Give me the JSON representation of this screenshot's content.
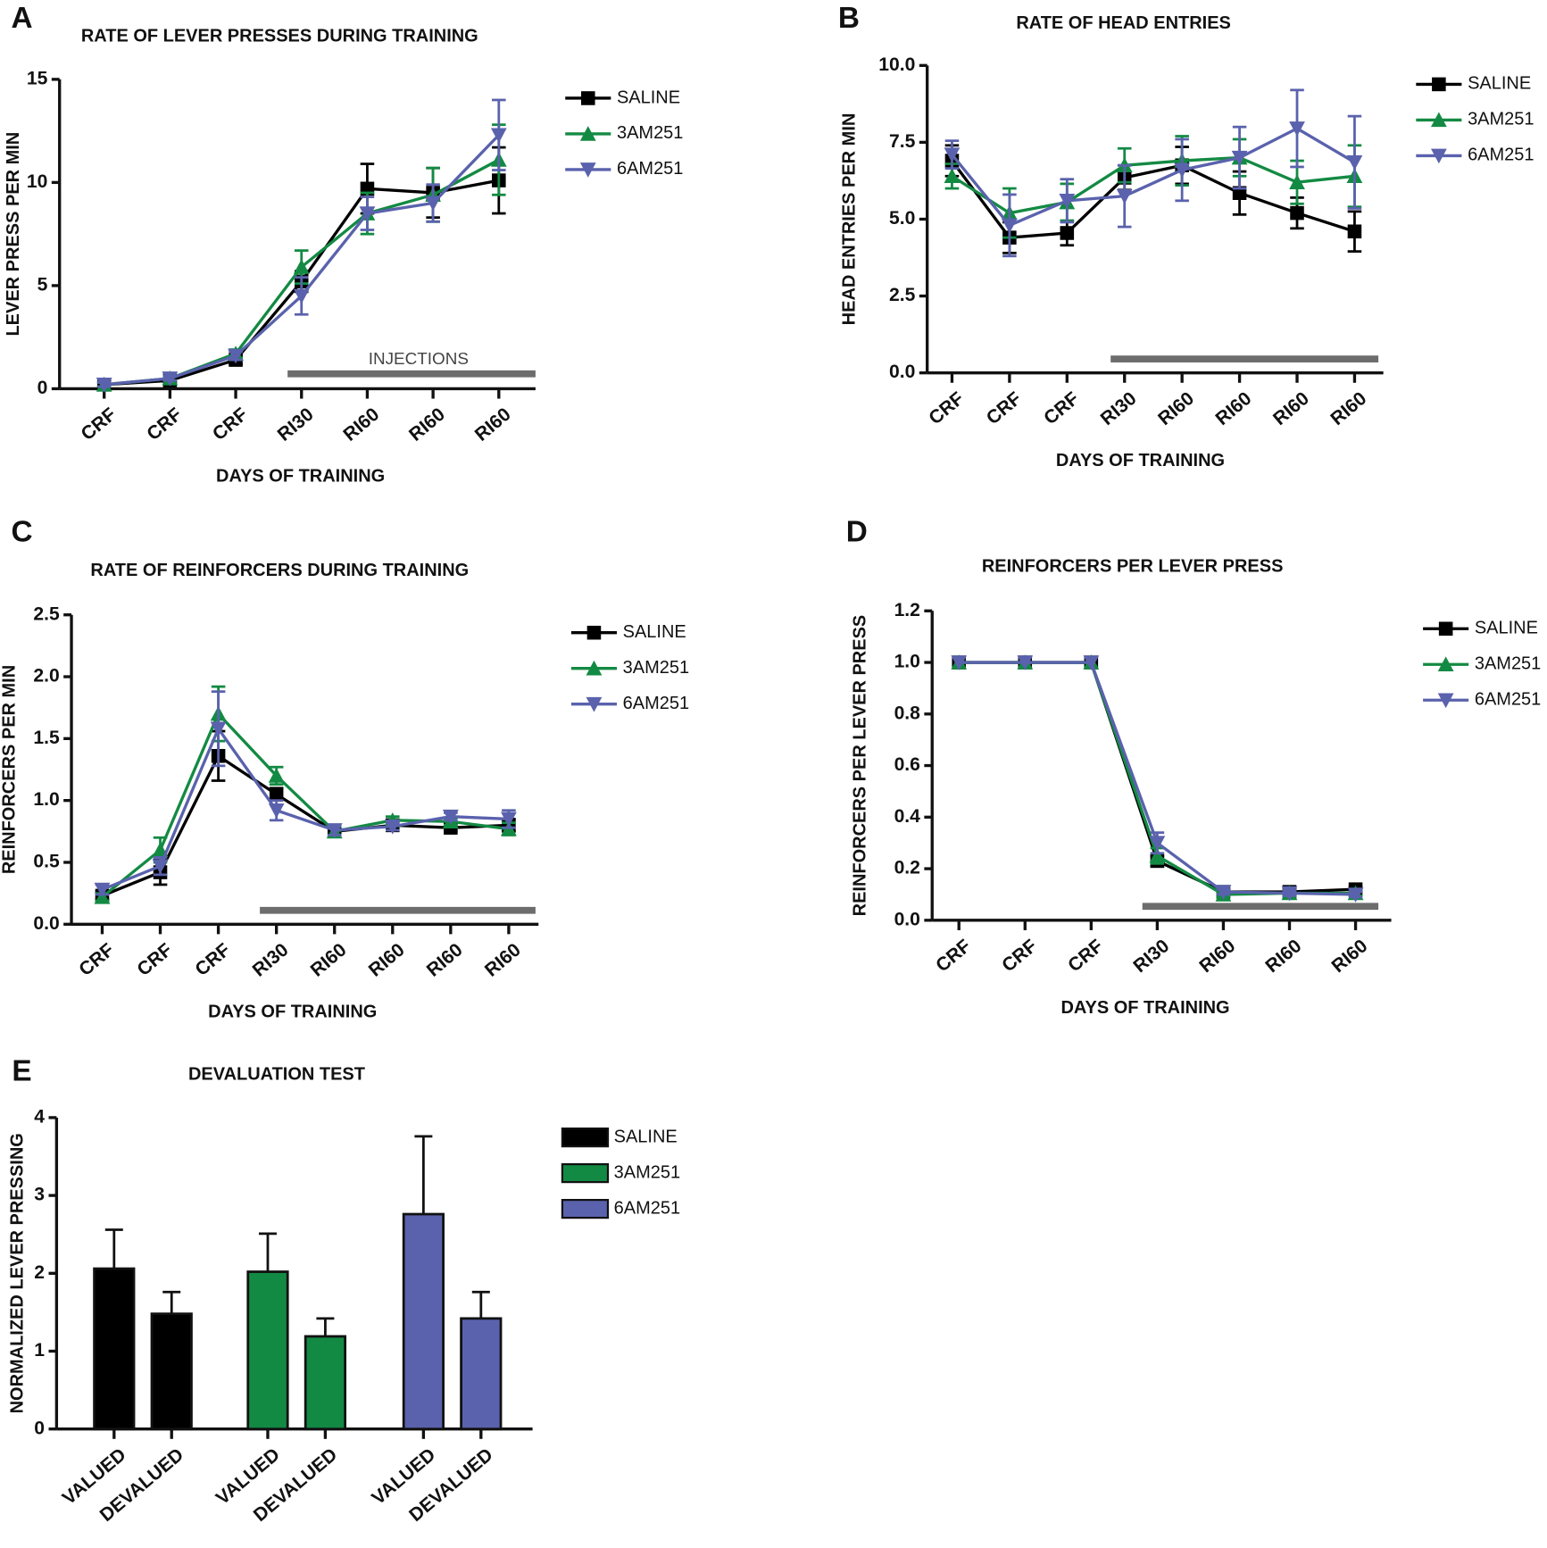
{
  "chart_data": [
    {
      "type": "line",
      "label": "A",
      "title": "RATE OF LEVER PRESSES DURING TRAINING",
      "x_label": "DAYS OF TRAINING",
      "y_label": "LEVER PRESS PER MIN",
      "annotation": "INJECTIONS",
      "categories": [
        "CRF",
        "CRF",
        "CRF",
        "RI30",
        "RI60",
        "RI60",
        "RI60"
      ],
      "ylim": [
        0,
        15
      ],
      "yticks": [
        0,
        5,
        10,
        15
      ],
      "series": [
        {
          "name": "SALINE",
          "color": "#000000",
          "marker": "square",
          "values": [
            0.2,
            0.4,
            1.4,
            5.2,
            9.7,
            9.5,
            10.1
          ],
          "errors": [
            0.1,
            0.1,
            0.2,
            0.5,
            1.2,
            1.2,
            1.6
          ]
        },
        {
          "name": "3AM251",
          "color": "#138a43",
          "marker": "triangle-up",
          "values": [
            0.2,
            0.5,
            1.7,
            5.9,
            8.5,
            9.4,
            11.1
          ],
          "errors": [
            0.1,
            0.1,
            0.2,
            0.8,
            1.0,
            1.3,
            1.7
          ]
        },
        {
          "name": "6AM251",
          "color": "#5a62ad",
          "marker": "triangle-down",
          "values": [
            0.2,
            0.5,
            1.6,
            4.5,
            8.5,
            9.0,
            12.3
          ],
          "errors": [
            0.1,
            0.1,
            0.2,
            0.9,
            0.8,
            0.9,
            1.7
          ]
        }
      ]
    },
    {
      "type": "line",
      "label": "B",
      "title": "RATE OF HEAD ENTRIES",
      "x_label": "DAYS OF TRAINING",
      "y_label": "HEAD ENTRIES PER MIN",
      "categories": [
        "CRF",
        "CRF",
        "CRF",
        "RI30",
        "RI60",
        "RI60",
        "RI60",
        "RI60"
      ],
      "ylim": [
        0,
        10
      ],
      "yticks": [
        {
          "value": 0,
          "label": "0.0"
        },
        {
          "value": 2.5,
          "label": "2.5"
        },
        {
          "value": 5,
          "label": "5.0"
        },
        {
          "value": 7.5,
          "label": "7.5"
        },
        {
          "value": 10,
          "label": "10.0"
        }
      ],
      "series": [
        {
          "name": "SALINE",
          "color": "#000000",
          "marker": "square",
          "values": [
            6.9,
            4.4,
            4.55,
            6.35,
            6.75,
            5.85,
            5.2,
            4.6
          ],
          "errors": [
            0.5,
            0.5,
            0.4,
            0.4,
            0.6,
            0.7,
            0.5,
            0.65
          ]
        },
        {
          "name": "3AM251",
          "color": "#138a43",
          "marker": "triangle-up",
          "values": [
            6.4,
            5.2,
            5.55,
            6.75,
            6.9,
            7.0,
            6.2,
            6.4
          ],
          "errors": [
            0.4,
            0.8,
            0.6,
            0.55,
            0.8,
            0.6,
            0.7,
            1.0
          ]
        },
        {
          "name": "6AM251",
          "color": "#5a62ad",
          "marker": "triangle-down",
          "values": [
            7.1,
            4.8,
            5.6,
            5.75,
            6.6,
            7.0,
            7.95,
            6.85
          ],
          "errors": [
            0.45,
            1.0,
            0.7,
            1.0,
            1.0,
            1.0,
            1.25,
            1.5
          ]
        }
      ]
    },
    {
      "type": "line",
      "label": "C",
      "title": "RATE OF REINFORCERS DURING TRAINING",
      "x_label": "DAYS OF TRAINING",
      "y_label": "REINFORCERS PER MIN",
      "categories": [
        "CRF",
        "CRF",
        "CRF",
        "RI30",
        "RI60",
        "RI60",
        "RI60",
        "RI60"
      ],
      "ylim": [
        0,
        2.5
      ],
      "yticks": [
        {
          "value": 0,
          "label": "0.0"
        },
        0.5,
        {
          "value": 1,
          "label": "1.0"
        },
        1.5,
        {
          "value": 2,
          "label": "2.0"
        },
        2.5
      ],
      "series": [
        {
          "name": "SALINE",
          "color": "#000000",
          "marker": "square",
          "values": [
            0.23,
            0.42,
            1.36,
            1.05,
            0.75,
            0.8,
            0.78,
            0.8
          ],
          "errors": [
            0.03,
            0.1,
            0.2,
            0.05,
            0.04,
            0.03,
            0.03,
            0.05
          ]
        },
        {
          "name": "3AM251",
          "color": "#138a43",
          "marker": "triangle-up",
          "values": [
            0.22,
            0.6,
            1.7,
            1.2,
            0.75,
            0.84,
            0.83,
            0.77
          ],
          "errors": [
            0.03,
            0.1,
            0.22,
            0.07,
            0.04,
            0.03,
            0.03,
            0.05
          ]
        },
        {
          "name": "6AM251",
          "color": "#5a62ad",
          "marker": "triangle-down",
          "values": [
            0.28,
            0.47,
            1.58,
            0.92,
            0.76,
            0.79,
            0.87,
            0.85
          ],
          "errors": [
            0.04,
            0.07,
            0.3,
            0.08,
            0.04,
            0.03,
            0.03,
            0.07
          ]
        }
      ]
    },
    {
      "type": "line",
      "label": "D",
      "title": "REINFORCERS PER LEVER PRESS",
      "x_label": "DAYS OF TRAINING",
      "y_label": "REINFORCERS PER LEVER PRESS",
      "categories": [
        "CRF",
        "CRF",
        "CRF",
        "RI30",
        "RI60",
        "RI60",
        "RI60"
      ],
      "ylim": [
        0,
        1.2
      ],
      "yticks": [
        {
          "value": 0,
          "label": "0.0"
        },
        0.2,
        0.4,
        0.6,
        0.8,
        {
          "value": 1,
          "label": "1.0"
        },
        1.2
      ],
      "series": [
        {
          "name": "SALINE",
          "color": "#000000",
          "marker": "square",
          "values": [
            1,
            1,
            1,
            0.23,
            0.11,
            0.11,
            0.12
          ],
          "errors": [
            0,
            0,
            0,
            0.02,
            0.01,
            0.01,
            0.01
          ]
        },
        {
          "name": "3AM251",
          "color": "#138a43",
          "marker": "triangle-up",
          "values": [
            1,
            1,
            1,
            0.25,
            0.1,
            0.105,
            0.105
          ],
          "errors": [
            0,
            0,
            0,
            0.03,
            0.01,
            0.01,
            0.01
          ]
        },
        {
          "name": "6AM251",
          "color": "#5a62ad",
          "marker": "triangle-down",
          "values": [
            1,
            1,
            1,
            0.3,
            0.11,
            0.105,
            0.1
          ],
          "errors": [
            0,
            0,
            0,
            0.04,
            0.01,
            0.01,
            0.01
          ]
        }
      ]
    },
    {
      "type": "bar",
      "label": "E",
      "title": "DEVALUATION TEST",
      "y_label": "NORMALIZED LEVER PRESSING",
      "categories": [
        "VALUED",
        "DEVALUED",
        "VALUED",
        "DEVALUED",
        "VALUED",
        "DEVALUED"
      ],
      "ylim": [
        0,
        4
      ],
      "yticks": [
        0,
        1,
        2,
        3,
        4
      ],
      "series": [
        {
          "name": "SALINE",
          "color": "#000000",
          "values": [
            2.06,
            1.48,
            null,
            null,
            null,
            null
          ],
          "errors": [
            0.5,
            0.28,
            null,
            null,
            null,
            null
          ]
        },
        {
          "name": "3AM251",
          "color": "#138a43",
          "values": [
            null,
            null,
            2.02,
            1.19,
            null,
            null
          ],
          "errors": [
            null,
            null,
            0.49,
            0.23,
            null,
            null
          ]
        },
        {
          "name": "6AM251",
          "color": "#5a62ad",
          "values": [
            null,
            null,
            null,
            null,
            2.76,
            1.42
          ],
          "errors": [
            null,
            null,
            null,
            null,
            1.0,
            0.34
          ]
        }
      ]
    }
  ]
}
